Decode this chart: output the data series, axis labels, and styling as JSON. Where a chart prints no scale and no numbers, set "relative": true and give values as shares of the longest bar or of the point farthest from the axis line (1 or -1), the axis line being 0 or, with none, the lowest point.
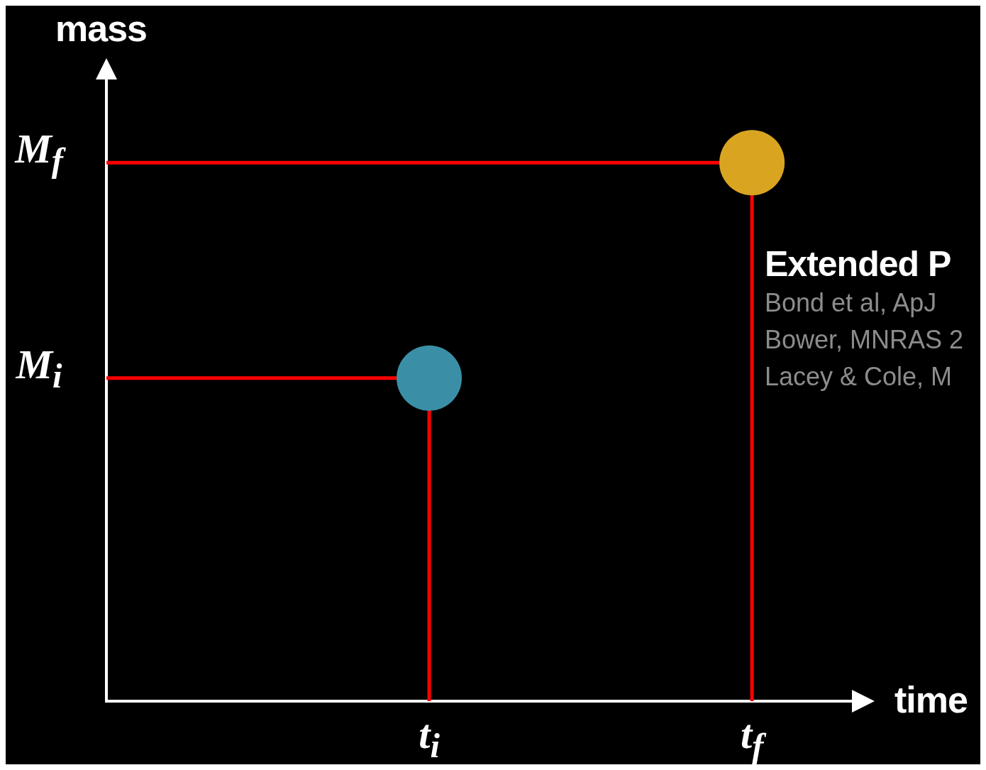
{
  "chart_data": {
    "type": "lollipop",
    "title": "Extended P",
    "xlabel": "time",
    "ylabel": "mass",
    "relative": true,
    "grid": false,
    "legend": false,
    "marker": "circle",
    "annotations": [
      "Bond et al, ApJ",
      "Bower, MNRAS 2",
      "Lacey & Cole, M"
    ],
    "ref_lines": [
      {
        "axis": "y",
        "value": 0.6,
        "label": "M$_{i}$",
        "color": "#ff0000",
        "line_style": "solid"
      },
      {
        "axis": "y",
        "value": 1,
        "label": "M$_{f}$",
        "color": "#ff0000",
        "line_style": "solid"
      }
    ],
    "categories": [
      null,
      "t$_{i}$",
      "t$_{f}$"
    ],
    "series": [
      {
        "color": "#ff0000",
        "colors": [
          null,
          "#3a8fa6",
          "#d9a521"
        ],
        "values": [
          null,
          0.6,
          1
        ]
      }
    ]
  }
}
